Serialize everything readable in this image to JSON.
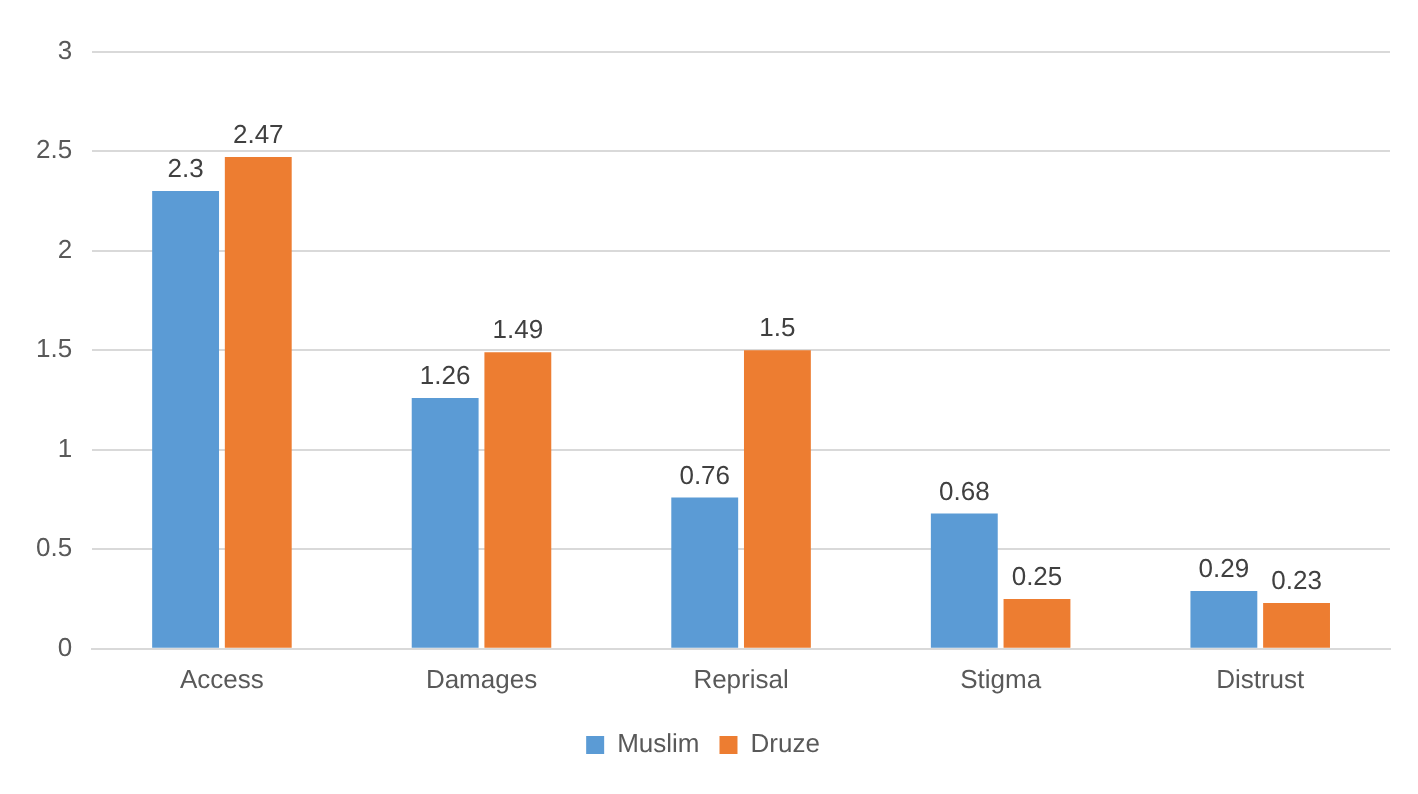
{
  "chart_data": {
    "type": "bar",
    "categories": [
      "Access",
      "Damages",
      "Reprisal",
      "Stigma",
      "Distrust"
    ],
    "series": [
      {
        "name": "Muslim",
        "color": "#5b9bd5",
        "values": [
          2.3,
          1.26,
          0.76,
          0.68,
          0.29
        ]
      },
      {
        "name": "Druze",
        "color": "#ed7d31",
        "values": [
          2.47,
          1.49,
          1.5,
          0.25,
          0.23
        ]
      }
    ],
    "ylim": [
      0,
      3
    ],
    "yticks": [
      0,
      0.5,
      1,
      1.5,
      2,
      2.5,
      3
    ],
    "grid": "y",
    "legend": "bottom",
    "data_labels": true
  }
}
